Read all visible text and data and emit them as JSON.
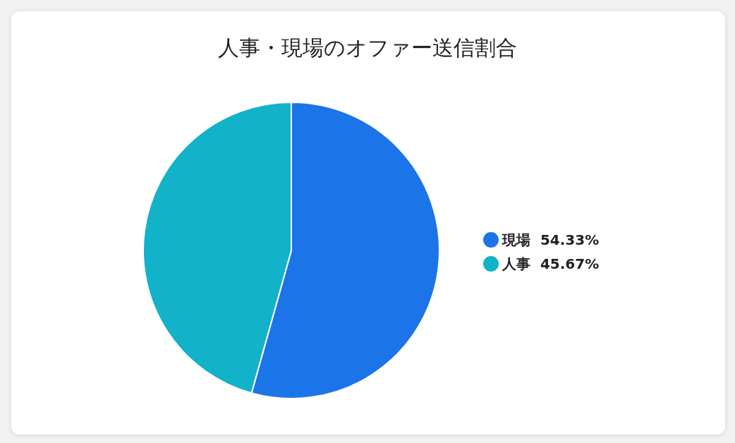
{
  "chart_data": {
    "type": "pie",
    "title": "人事・現場のオファー送信割合",
    "categories": [
      "現場",
      "人事"
    ],
    "values": [
      54.33,
      45.67
    ],
    "value_labels": [
      "54.33%",
      "45.67%"
    ],
    "colors": [
      "#1b74e8",
      "#12b2c9"
    ],
    "legend": "right"
  }
}
